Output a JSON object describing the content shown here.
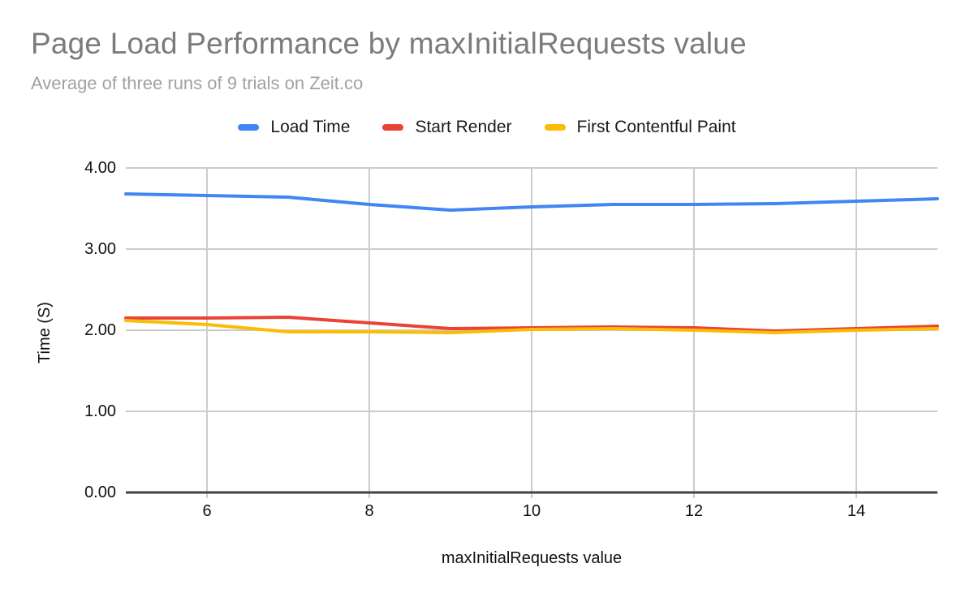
{
  "page": {
    "background": "#ffffff"
  },
  "chart_data": {
    "type": "line",
    "title": "Page Load Performance by maxInitialRequests value",
    "subtitle": "Average of three runs of 9 trials on Zeit.co",
    "xlabel": "maxInitialRequests value",
    "ylabel": "Time (S)",
    "x": [
      5,
      6,
      7,
      8,
      9,
      10,
      11,
      12,
      13,
      14,
      15
    ],
    "series": [
      {
        "name": "Load Time",
        "color": "#4285F4",
        "values": [
          3.68,
          3.66,
          3.64,
          3.55,
          3.48,
          3.52,
          3.55,
          3.55,
          3.56,
          3.59,
          3.62
        ]
      },
      {
        "name": "Start Render",
        "color": "#EA4335",
        "values": [
          2.15,
          2.15,
          2.16,
          2.09,
          2.02,
          2.03,
          2.04,
          2.03,
          1.99,
          2.02,
          2.05
        ]
      },
      {
        "name": "First Contentful Paint",
        "color": "#FBBC04",
        "values": [
          2.12,
          2.07,
          1.98,
          1.98,
          1.97,
          2.01,
          2.02,
          2.0,
          1.97,
          2.0,
          2.02
        ]
      }
    ],
    "xlim": [
      5,
      15
    ],
    "ylim": [
      0,
      4
    ],
    "xticks": [
      6,
      8,
      10,
      12,
      14
    ],
    "yticks": [
      0,
      1,
      2,
      3,
      4
    ],
    "ytick_labels": [
      "0.00",
      "1.00",
      "2.00",
      "3.00",
      "4.00"
    ],
    "grid": true,
    "legend_position": "top",
    "grid_color": "#cccccc",
    "baseline_color": "#424242",
    "title_color": "#7b7b7b",
    "subtitle_color": "#a1a1a1",
    "line_width": 4
  }
}
